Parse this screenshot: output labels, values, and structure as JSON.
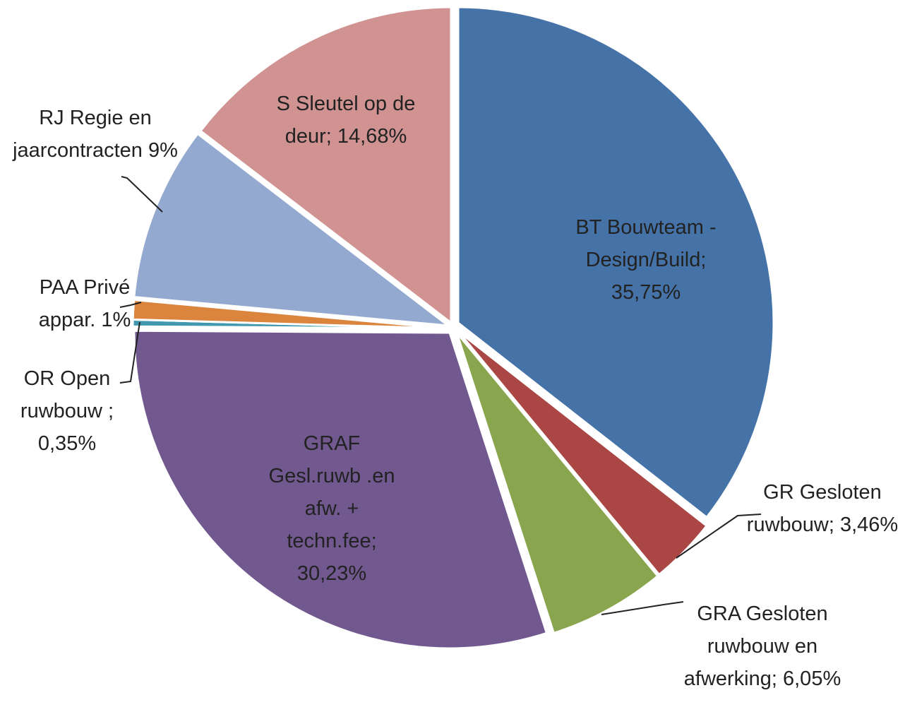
{
  "chart_data": {
    "type": "pie",
    "categories": [
      "BT Bouwteam - Design/Build;",
      "GR Gesloten ruwbouw;",
      "GRA Gesloten ruwbouw en afwerking;",
      "GRAF Gesl.ruwb .en afw. + techn.fee;",
      "OR Open ruwbouw ;",
      "PAA Privé appar.",
      "RJ Regie en jaarcontracten",
      "S Sleutel op de deur;"
    ],
    "values": [
      35.75,
      3.46,
      6.05,
      30.23,
      0.35,
      1,
      9,
      14.68
    ],
    "value_labels": [
      "35,75%",
      "3,46%",
      "6,05%",
      "30,23%",
      "0,35%",
      "1%",
      "9%",
      "14,68%"
    ],
    "colors": [
      "#4572a7",
      "#aa4643",
      "#89a54e",
      "#71588f",
      "#4198af",
      "#db843d",
      "#93a9cf",
      "#d09392"
    ]
  }
}
